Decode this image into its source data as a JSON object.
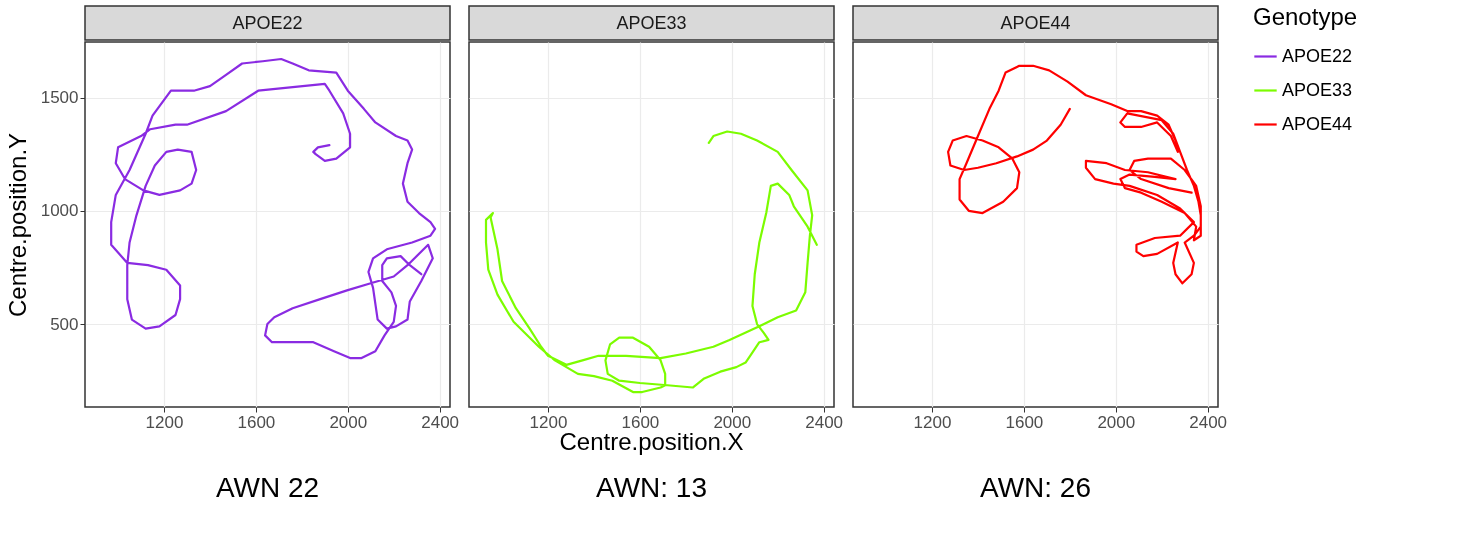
{
  "chart_data": [
    {
      "type": "line",
      "title": "APOE22",
      "ylabel": "Centre.position.Y",
      "annotations": [
        "AWN 22"
      ],
      "xlim": [
        856,
        2445
      ],
      "ylim": [
        134,
        1745
      ],
      "xticks": [
        1200,
        1600,
        2000,
        2400
      ],
      "yticks": [
        500,
        1000,
        1500
      ],
      "grid": true,
      "series": [
        {
          "name": "APOE22",
          "color": "#8a2be2",
          "x": [
            1920,
            1870,
            1850,
            1860,
            1900,
            1950,
            2010,
            2010,
            1980,
            1920,
            1900,
            1610,
            1470,
            1300,
            1250,
            1140,
            1100,
            1000,
            990,
            1030,
            1110,
            1180,
            1270,
            1320,
            1340,
            1320,
            1260,
            1210,
            1160,
            1120,
            1080,
            1050,
            1040,
            1040,
            1060,
            1120,
            1180,
            1250,
            1270,
            1270,
            1210,
            1130,
            1040,
            970,
            970,
            990,
            1050,
            1120,
            1150,
            1230,
            1330,
            1400,
            1470,
            1540,
            1630,
            1710,
            1760,
            1830,
            1950,
            2000,
            2070,
            2120,
            2210,
            2260,
            2280,
            2260,
            2240,
            2260,
            2310,
            2360,
            2380,
            2360,
            2280,
            2170,
            2110,
            2090,
            2110,
            2130,
            2170,
            2210,
            2260,
            2270,
            2320,
            2370,
            2350,
            2260,
            2200,
            2100,
            2000,
            1880,
            1760,
            1680,
            1650,
            1640,
            1670,
            1780,
            1850,
            1940,
            2010,
            2060,
            2120,
            2160,
            2200,
            2210,
            2190,
            2150,
            2150,
            2170,
            2230,
            2270,
            2320
          ],
          "values": [
            1290,
            1280,
            1260,
            1250,
            1220,
            1230,
            1280,
            1340,
            1430,
            1530,
            1560,
            1530,
            1440,
            1380,
            1380,
            1360,
            1330,
            1280,
            1210,
            1140,
            1090,
            1070,
            1090,
            1120,
            1180,
            1260,
            1270,
            1260,
            1200,
            1110,
            980,
            860,
            760,
            610,
            520,
            480,
            490,
            540,
            610,
            670,
            740,
            760,
            770,
            850,
            950,
            1070,
            1180,
            1340,
            1420,
            1530,
            1530,
            1550,
            1600,
            1650,
            1660,
            1670,
            1650,
            1620,
            1610,
            1530,
            1450,
            1390,
            1330,
            1310,
            1270,
            1210,
            1120,
            1040,
            990,
            950,
            920,
            890,
            860,
            830,
            790,
            730,
            660,
            520,
            480,
            490,
            520,
            600,
            690,
            790,
            850,
            760,
            710,
            680,
            650,
            610,
            570,
            530,
            500,
            450,
            420,
            420,
            420,
            380,
            350,
            350,
            380,
            450,
            510,
            580,
            640,
            690,
            760,
            790,
            800,
            760,
            720
          ]
        }
      ]
    },
    {
      "type": "line",
      "title": "APOE33",
      "xlabel": "Centre.position.X",
      "annotations": [
        "AWN: 13"
      ],
      "xlim": [
        856,
        2445
      ],
      "ylim": [
        134,
        1745
      ],
      "xticks": [
        1200,
        1600,
        2000,
        2400
      ],
      "yticks": [
        500,
        1000,
        1500
      ],
      "grid": true,
      "tick_labels": "x",
      "series": [
        {
          "name": "APOE33",
          "color": "#7cfc00",
          "x": [
            1900,
            1920,
            1980,
            2040,
            2110,
            2200,
            2260,
            2330,
            2350,
            2340,
            2330,
            2320,
            2280,
            2200,
            2120,
            1990,
            1920,
            1800,
            1690,
            1540,
            1420,
            1350,
            1280,
            1200,
            1170,
            1120,
            1060,
            1000,
            980,
            950,
            960,
            930,
            930,
            940,
            980,
            1050,
            1160,
            1230,
            1330,
            1400,
            1480,
            1570,
            1610,
            1690,
            1710,
            1710,
            1690,
            1640,
            1570,
            1510,
            1470,
            1450,
            1460,
            1510,
            1600,
            1720,
            1830,
            1880,
            1950,
            2020,
            2060,
            2080,
            2120,
            2160,
            2140,
            2110,
            2090,
            2100,
            2120,
            2150,
            2170,
            2200,
            2250,
            2270,
            2330,
            2370
          ],
          "values": [
            1300,
            1330,
            1350,
            1340,
            1310,
            1260,
            1180,
            1090,
            980,
            890,
            770,
            640,
            560,
            530,
            490,
            430,
            400,
            370,
            350,
            360,
            360,
            340,
            320,
            360,
            400,
            480,
            570,
            690,
            830,
            970,
            990,
            960,
            860,
            740,
            630,
            510,
            400,
            340,
            280,
            270,
            250,
            200,
            200,
            220,
            230,
            280,
            340,
            400,
            440,
            440,
            410,
            340,
            280,
            250,
            240,
            230,
            220,
            260,
            290,
            310,
            330,
            360,
            420,
            430,
            460,
            500,
            580,
            720,
            860,
            990,
            1110,
            1120,
            1070,
            1020,
            930,
            850
          ]
        }
      ]
    },
    {
      "type": "line",
      "title": "APOE44",
      "annotations": [
        "AWN: 26"
      ],
      "xlim": [
        856,
        2445
      ],
      "ylim": [
        134,
        1745
      ],
      "xticks": [
        1200,
        1600,
        2000,
        2400
      ],
      "yticks": [
        500,
        1000,
        1500
      ],
      "grid": true,
      "tick_labels": "x",
      "legend": "right",
      "legend_title": "Genotype",
      "series": [
        {
          "name": "APOE44",
          "color": "#ff0000",
          "x": [
            1800,
            1760,
            1700,
            1640,
            1570,
            1480,
            1400,
            1340,
            1280,
            1270,
            1290,
            1350,
            1420,
            1490,
            1550,
            1580,
            1570,
            1510,
            1420,
            1360,
            1320,
            1320,
            1350,
            1400,
            1450,
            1490,
            1520,
            1580,
            1640,
            1710,
            1790,
            1870,
            1980,
            2050,
            2110,
            2180,
            2230,
            2260,
            2270,
            2240,
            2180,
            2110,
            2040,
            2020,
            2050,
            2200,
            2250,
            2280,
            2310,
            2340,
            2360,
            2370,
            2370,
            2340,
            2350,
            2300,
            2200,
            2110,
            2040,
            2020,
            2060,
            2170,
            2260,
            2140,
            2040,
            1960,
            1870,
            1870,
            1910,
            1990,
            2060,
            2180,
            2280,
            2340,
            2280,
            2170,
            2090,
            2090,
            2120,
            2180,
            2270,
            2250,
            2260,
            2290,
            2330,
            2340,
            2300,
            2340,
            2370,
            2370,
            2350,
            2300,
            2240,
            2140,
            2080,
            2060,
            2110,
            2230,
            2330
          ],
          "values": [
            1450,
            1380,
            1310,
            1270,
            1240,
            1210,
            1190,
            1180,
            1200,
            1260,
            1310,
            1330,
            1310,
            1280,
            1230,
            1170,
            1100,
            1040,
            990,
            1000,
            1050,
            1140,
            1210,
            1330,
            1450,
            1530,
            1610,
            1640,
            1640,
            1620,
            1570,
            1510,
            1470,
            1440,
            1440,
            1420,
            1380,
            1310,
            1260,
            1330,
            1390,
            1370,
            1370,
            1390,
            1430,
            1400,
            1340,
            1260,
            1180,
            1110,
            1040,
            980,
            890,
            870,
            930,
            990,
            1040,
            1080,
            1100,
            1140,
            1160,
            1150,
            1140,
            1170,
            1180,
            1210,
            1220,
            1190,
            1140,
            1120,
            1110,
            1070,
            1010,
            950,
            890,
            880,
            850,
            820,
            800,
            810,
            860,
            770,
            720,
            680,
            720,
            770,
            860,
            890,
            930,
            1020,
            1110,
            1180,
            1230,
            1230,
            1220,
            1180,
            1140,
            1100,
            1080
          ]
        }
      ]
    }
  ]
}
